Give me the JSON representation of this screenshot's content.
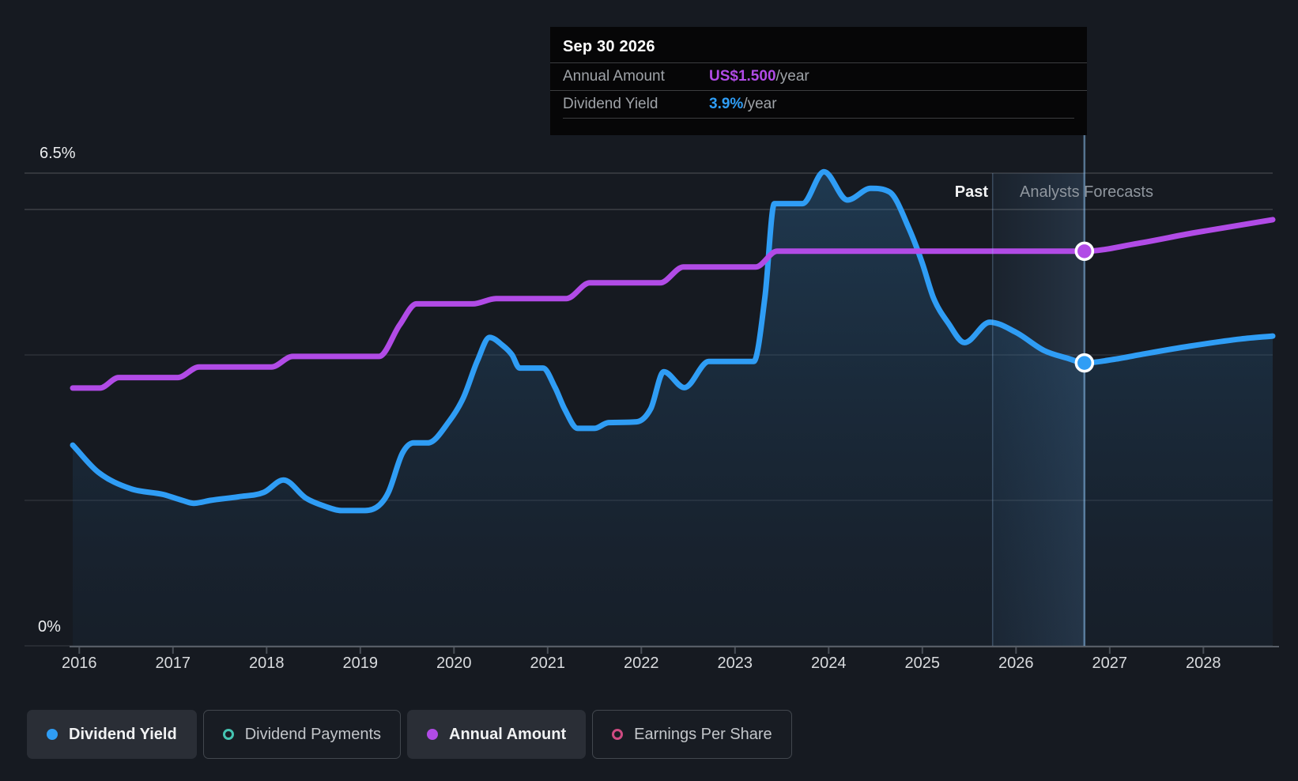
{
  "page": {
    "background": "#161a21"
  },
  "tooltip": {
    "title": "Sep 30 2026",
    "rows": [
      {
        "label": "Annual Amount",
        "value": "US$1.500",
        "suffix": "/year",
        "color": "#b14be6"
      },
      {
        "label": "Dividend Yield",
        "value": "3.9%",
        "suffix": "/year",
        "color": "#2f9df5"
      }
    ]
  },
  "region_labels": {
    "past": "Past",
    "forecast": "Analysts Forecasts"
  },
  "y_axis": {
    "top_label": "6.5%",
    "bottom_label": "0%"
  },
  "legend": [
    {
      "label": "Dividend Yield",
      "marker": "dot",
      "color": "#2f9df5",
      "active": true
    },
    {
      "label": "Dividend Payments",
      "marker": "ring",
      "color": "#45c4b2",
      "active": false
    },
    {
      "label": "Annual Amount",
      "marker": "dot",
      "color": "#b14be6",
      "active": true
    },
    {
      "label": "Earnings Per Share",
      "marker": "ring",
      "color": "#cf4b82",
      "active": false
    }
  ],
  "chart_data": {
    "type": "line",
    "title": "Dividend history and forecast",
    "x_range": [
      2015.93,
      2028.74
    ],
    "x_ticks": [
      2016,
      2017,
      2018,
      2019,
      2020,
      2021,
      2022,
      2023,
      2024,
      2025,
      2026,
      2027,
      2028
    ],
    "grid_yields": [
      6.5,
      6.0,
      4.0,
      2.0,
      0
    ],
    "forecast_start_x": 2025.75,
    "hover_x": 2026.73,
    "yield_axis": {
      "min": 0,
      "max": 6.5,
      "unit": "%"
    },
    "amount_axis": {
      "min": 0,
      "max": 1.797,
      "unit": "US$/year"
    },
    "series": [
      {
        "name": "Dividend Yield",
        "axis": "yield",
        "color": "#2f9df5",
        "area": true,
        "points": [
          [
            2015.93,
            2.76
          ],
          [
            2016.2,
            2.39
          ],
          [
            2016.55,
            2.16
          ],
          [
            2016.9,
            2.08
          ],
          [
            2017.1,
            2.0
          ],
          [
            2017.22,
            1.96
          ],
          [
            2017.4,
            2.0
          ],
          [
            2017.7,
            2.05
          ],
          [
            2017.97,
            2.11
          ],
          [
            2018.18,
            2.28
          ],
          [
            2018.42,
            2.03
          ],
          [
            2018.62,
            1.92
          ],
          [
            2018.8,
            1.86
          ],
          [
            2019.05,
            1.86
          ],
          [
            2019.2,
            1.93
          ],
          [
            2019.3,
            2.11
          ],
          [
            2019.45,
            2.65
          ],
          [
            2019.57,
            2.79
          ],
          [
            2019.72,
            2.79
          ],
          [
            2019.95,
            3.09
          ],
          [
            2020.1,
            3.41
          ],
          [
            2020.25,
            3.92
          ],
          [
            2020.38,
            4.24
          ],
          [
            2020.52,
            4.13
          ],
          [
            2020.62,
            4.0
          ],
          [
            2020.7,
            3.82
          ],
          [
            2020.95,
            3.82
          ],
          [
            2021.08,
            3.55
          ],
          [
            2021.18,
            3.26
          ],
          [
            2021.32,
            2.99
          ],
          [
            2021.5,
            2.99
          ],
          [
            2021.65,
            3.07
          ],
          [
            2021.95,
            3.08
          ],
          [
            2022.1,
            3.26
          ],
          [
            2022.24,
            3.77
          ],
          [
            2022.46,
            3.55
          ],
          [
            2022.72,
            3.91
          ],
          [
            2023.2,
            3.91
          ],
          [
            2023.32,
            4.8
          ],
          [
            2023.42,
            6.08
          ],
          [
            2023.72,
            6.08
          ],
          [
            2023.95,
            6.52
          ],
          [
            2024.2,
            6.13
          ],
          [
            2024.45,
            6.29
          ],
          [
            2024.65,
            6.24
          ],
          [
            2024.86,
            5.73
          ],
          [
            2025.0,
            5.26
          ],
          [
            2025.12,
            4.78
          ],
          [
            2025.28,
            4.43
          ],
          [
            2025.45,
            4.17
          ],
          [
            2025.72,
            4.45
          ],
          [
            2026.0,
            4.31
          ],
          [
            2026.3,
            4.06
          ],
          [
            2026.56,
            3.95
          ],
          [
            2026.73,
            3.89
          ],
          [
            2027.05,
            3.94
          ],
          [
            2027.35,
            4.01
          ],
          [
            2027.85,
            4.12
          ],
          [
            2028.4,
            4.22
          ],
          [
            2028.74,
            4.26
          ]
        ]
      },
      {
        "name": "Annual Amount",
        "axis": "amount",
        "color": "#b14be6",
        "area": false,
        "points": [
          [
            2015.93,
            0.98
          ],
          [
            2016.22,
            0.98
          ],
          [
            2016.42,
            1.02
          ],
          [
            2017.05,
            1.02
          ],
          [
            2017.28,
            1.06
          ],
          [
            2018.05,
            1.06
          ],
          [
            2018.28,
            1.1
          ],
          [
            2019.2,
            1.1
          ],
          [
            2019.42,
            1.22
          ],
          [
            2019.6,
            1.3
          ],
          [
            2020.2,
            1.3
          ],
          [
            2020.45,
            1.32
          ],
          [
            2021.2,
            1.32
          ],
          [
            2021.45,
            1.38
          ],
          [
            2022.2,
            1.38
          ],
          [
            2022.45,
            1.44
          ],
          [
            2023.22,
            1.44
          ],
          [
            2023.45,
            1.5
          ],
          [
            2026.73,
            1.5
          ],
          [
            2027.3,
            1.53
          ],
          [
            2027.9,
            1.57
          ],
          [
            2028.74,
            1.62
          ]
        ]
      }
    ],
    "markers": [
      {
        "series": "Dividend Yield",
        "x": 2026.73,
        "y": 3.89,
        "color": "#2f9df5"
      },
      {
        "series": "Annual Amount",
        "x": 2026.73,
        "y": 1.5,
        "color": "#b14be6"
      }
    ]
  }
}
